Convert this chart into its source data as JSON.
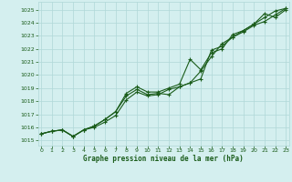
{
  "title": "Graphe pression niveau de la mer (hPa)",
  "yticks": [
    1015,
    1016,
    1017,
    1018,
    1019,
    1020,
    1021,
    1022,
    1023,
    1024,
    1025
  ],
  "xticks": [
    0,
    1,
    2,
    3,
    4,
    5,
    6,
    7,
    8,
    9,
    10,
    11,
    12,
    13,
    14,
    15,
    16,
    17,
    18,
    19,
    20,
    21,
    22,
    23
  ],
  "background_color": "#d4efef",
  "grid_color": "#b0d8d8",
  "line_color": "#1a5c1a",
  "line1_y": [
    1015.5,
    1015.7,
    1015.8,
    1015.3,
    1015.8,
    1016.1,
    1016.6,
    1017.2,
    1018.6,
    1019.1,
    1018.7,
    1018.7,
    1019.0,
    1019.3,
    1021.2,
    1020.4,
    1021.7,
    1022.0,
    1023.1,
    1023.4,
    1023.9,
    1024.7,
    1024.4,
    1025.0
  ],
  "line2_y": [
    1015.5,
    1015.7,
    1015.8,
    1015.3,
    1015.8,
    1016.1,
    1016.6,
    1017.2,
    1018.4,
    1018.9,
    1018.5,
    1018.6,
    1018.5,
    1019.1,
    1019.4,
    1019.7,
    1021.9,
    1022.2,
    1022.9,
    1023.3,
    1023.8,
    1024.1,
    1024.6,
    1025.1
  ],
  "line3_y": [
    1015.5,
    1015.7,
    1015.8,
    1015.3,
    1015.8,
    1016.0,
    1016.4,
    1016.9,
    1018.1,
    1018.7,
    1018.4,
    1018.5,
    1018.9,
    1019.1,
    1019.4,
    1020.3,
    1021.4,
    1022.4,
    1022.9,
    1023.4,
    1023.9,
    1024.4,
    1024.9,
    1025.1
  ]
}
